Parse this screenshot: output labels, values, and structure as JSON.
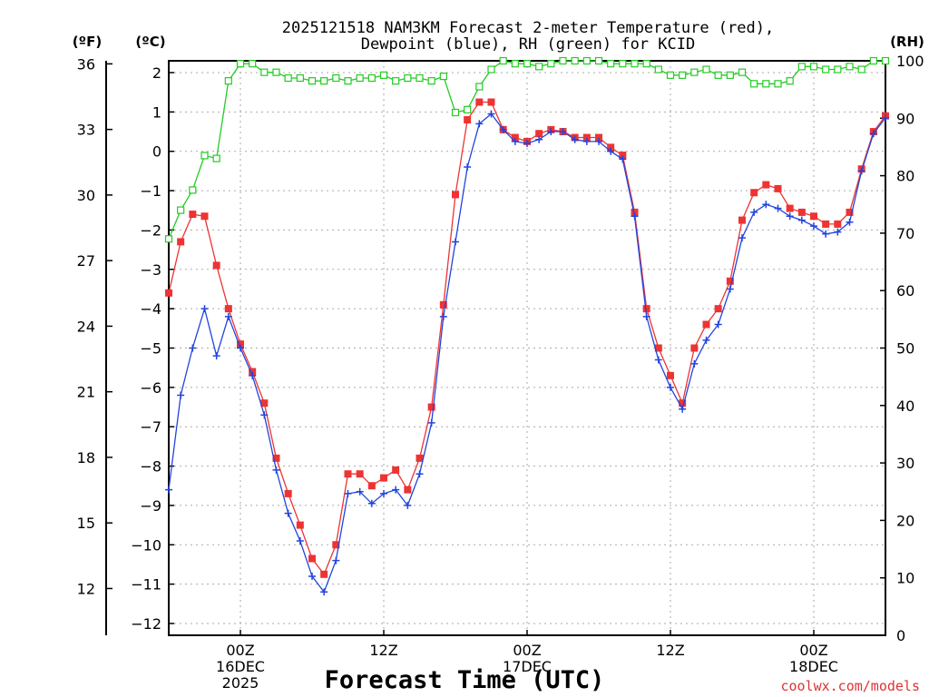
{
  "chart_data": {
    "type": "line",
    "title_line1": "2025121518 NAM3KM Forecast 2-meter Temperature (red),",
    "title_line2": "Dewpoint (blue), RH (green) for KCID",
    "unit_f": "(ºF)",
    "unit_c": "(ºC)",
    "unit_rh": "(RH)",
    "xlabel": "Forecast Time (UTC)",
    "watermark": "coolwx.com/models",
    "x_range_hours": [
      -5,
      55
    ],
    "y_celsius_range": [
      -12.3,
      2.3
    ],
    "y_rh_range": [
      0,
      100
    ],
    "y_fahrenheit_ticks": [
      12,
      15,
      18,
      21,
      24,
      27,
      30,
      33,
      36
    ],
    "y_celsius_ticks": [
      -12,
      -11,
      -10,
      -9,
      -8,
      -7,
      -6,
      -5,
      -4,
      -3,
      -2,
      -1,
      0,
      1,
      2
    ],
    "y_rh_ticks": [
      0,
      10,
      20,
      30,
      40,
      50,
      60,
      70,
      80,
      90,
      100
    ],
    "x_ticks": [
      {
        "hour": 1,
        "lines": [
          "00Z",
          "16DEC",
          "2025"
        ]
      },
      {
        "hour": 13,
        "lines": [
          "12Z"
        ]
      },
      {
        "hour": 25,
        "lines": [
          "00Z",
          "17DEC"
        ]
      },
      {
        "hour": 37,
        "lines": [
          "12Z"
        ]
      },
      {
        "hour": 49,
        "lines": [
          "00Z",
          "18DEC"
        ]
      }
    ],
    "grid": true,
    "series": [
      {
        "name": "Temperature",
        "color": "#ee3333",
        "marker": "square",
        "points": [
          [
            -5,
            -3.6
          ],
          [
            -4,
            -2.3
          ],
          [
            -3,
            -1.6
          ],
          [
            -2,
            -1.65
          ],
          [
            -1,
            -2.9
          ],
          [
            0,
            -4.0
          ],
          [
            1,
            -4.9
          ],
          [
            2,
            -5.6
          ],
          [
            3,
            -6.4
          ],
          [
            4,
            -7.8
          ],
          [
            5,
            -8.7
          ],
          [
            6,
            -9.5
          ],
          [
            7,
            -10.35
          ],
          [
            8,
            -10.75
          ],
          [
            9,
            -10.0
          ],
          [
            10,
            -8.2
          ],
          [
            11,
            -8.2
          ],
          [
            12,
            -8.5
          ],
          [
            13,
            -8.3
          ],
          [
            14,
            -8.1
          ],
          [
            15,
            -8.6
          ],
          [
            16,
            -7.8
          ],
          [
            17,
            -6.5
          ],
          [
            18,
            -3.9
          ],
          [
            19,
            -1.1
          ],
          [
            20,
            0.8
          ],
          [
            21,
            1.25
          ],
          [
            22,
            1.25
          ],
          [
            23,
            0.55
          ],
          [
            24,
            0.35
          ],
          [
            25,
            0.25
          ],
          [
            26,
            0.45
          ],
          [
            27,
            0.55
          ],
          [
            28,
            0.5
          ],
          [
            29,
            0.35
          ],
          [
            30,
            0.35
          ],
          [
            31,
            0.35
          ],
          [
            32,
            0.1
          ],
          [
            33,
            -0.1
          ],
          [
            34,
            -1.55
          ],
          [
            35,
            -4.0
          ],
          [
            36,
            -5.0
          ],
          [
            37,
            -5.7
          ],
          [
            38,
            -6.4
          ],
          [
            39,
            -5.0
          ],
          [
            40,
            -4.4
          ],
          [
            41,
            -4.0
          ],
          [
            42,
            -3.3
          ],
          [
            43,
            -1.75
          ],
          [
            44,
            -1.05
          ],
          [
            45,
            -0.85
          ],
          [
            46,
            -0.95
          ],
          [
            47,
            -1.45
          ],
          [
            48,
            -1.55
          ],
          [
            49,
            -1.65
          ],
          [
            50,
            -1.85
          ],
          [
            51,
            -1.85
          ],
          [
            52,
            -1.55
          ],
          [
            53,
            -0.45
          ],
          [
            54,
            0.5
          ],
          [
            55,
            0.9
          ]
        ]
      },
      {
        "name": "Dewpoint",
        "color": "#2244dd",
        "marker": "plus",
        "points": [
          [
            -5,
            -8.6
          ],
          [
            -4,
            -6.2
          ],
          [
            -3,
            -5.0
          ],
          [
            -2,
            -4.0
          ],
          [
            -1,
            -5.2
          ],
          [
            0,
            -4.2
          ],
          [
            1,
            -5.0
          ],
          [
            2,
            -5.7
          ],
          [
            3,
            -6.7
          ],
          [
            4,
            -8.1
          ],
          [
            5,
            -9.2
          ],
          [
            6,
            -9.9
          ],
          [
            7,
            -10.8
          ],
          [
            8,
            -11.2
          ],
          [
            9,
            -10.4
          ],
          [
            10,
            -8.7
          ],
          [
            11,
            -8.65
          ],
          [
            12,
            -8.95
          ],
          [
            13,
            -8.7
          ],
          [
            14,
            -8.6
          ],
          [
            15,
            -9.0
          ],
          [
            16,
            -8.2
          ],
          [
            17,
            -6.9
          ],
          [
            18,
            -4.2
          ],
          [
            19,
            -2.3
          ],
          [
            20,
            -0.4
          ],
          [
            21,
            0.7
          ],
          [
            22,
            0.95
          ],
          [
            23,
            0.55
          ],
          [
            24,
            0.25
          ],
          [
            25,
            0.2
          ],
          [
            26,
            0.3
          ],
          [
            27,
            0.5
          ],
          [
            28,
            0.5
          ],
          [
            29,
            0.3
          ],
          [
            30,
            0.25
          ],
          [
            31,
            0.25
          ],
          [
            32,
            0.0
          ],
          [
            33,
            -0.2
          ],
          [
            34,
            -1.65
          ],
          [
            35,
            -4.2
          ],
          [
            36,
            -5.3
          ],
          [
            37,
            -6.0
          ],
          [
            38,
            -6.55
          ],
          [
            39,
            -5.4
          ],
          [
            40,
            -4.8
          ],
          [
            41,
            -4.4
          ],
          [
            42,
            -3.5
          ],
          [
            43,
            -2.2
          ],
          [
            44,
            -1.55
          ],
          [
            45,
            -1.35
          ],
          [
            46,
            -1.45
          ],
          [
            47,
            -1.65
          ],
          [
            48,
            -1.75
          ],
          [
            49,
            -1.9
          ],
          [
            50,
            -2.1
          ],
          [
            51,
            -2.05
          ],
          [
            52,
            -1.8
          ],
          [
            53,
            -0.5
          ],
          [
            54,
            0.45
          ],
          [
            55,
            0.85
          ]
        ]
      },
      {
        "name": "Relative Humidity",
        "color": "#22cc22",
        "marker": "open-square",
        "axis": "rh",
        "points": [
          [
            -5,
            69
          ],
          [
            -4,
            74
          ],
          [
            -3,
            77.5
          ],
          [
            -2,
            83.5
          ],
          [
            -1,
            83
          ],
          [
            0,
            96.5
          ],
          [
            1,
            99.5
          ],
          [
            2,
            99.5
          ],
          [
            3,
            98
          ],
          [
            4,
            98
          ],
          [
            5,
            97
          ],
          [
            6,
            97
          ],
          [
            7,
            96.5
          ],
          [
            8,
            96.5
          ],
          [
            9,
            97
          ],
          [
            10,
            96.5
          ],
          [
            11,
            97
          ],
          [
            12,
            97
          ],
          [
            13,
            97.5
          ],
          [
            14,
            96.5
          ],
          [
            15,
            97
          ],
          [
            16,
            97
          ],
          [
            17,
            96.5
          ],
          [
            18,
            97.3
          ],
          [
            19,
            91
          ],
          [
            20,
            91.5
          ],
          [
            21,
            95.5
          ],
          [
            22,
            98.5
          ],
          [
            23,
            100
          ],
          [
            24,
            99.5
          ],
          [
            25,
            99.5
          ],
          [
            26,
            99
          ],
          [
            27,
            99.5
          ],
          [
            28,
            100
          ],
          [
            29,
            100
          ],
          [
            30,
            100
          ],
          [
            31,
            100
          ],
          [
            32,
            99.5
          ],
          [
            33,
            99.5
          ],
          [
            34,
            99.5
          ],
          [
            35,
            99.5
          ],
          [
            36,
            98.5
          ],
          [
            37,
            97.5
          ],
          [
            38,
            97.5
          ],
          [
            39,
            98
          ],
          [
            40,
            98.5
          ],
          [
            41,
            97.5
          ],
          [
            42,
            97.5
          ],
          [
            43,
            98
          ],
          [
            44,
            96
          ],
          [
            45,
            96
          ],
          [
            46,
            96
          ],
          [
            47,
            96.5
          ],
          [
            48,
            99
          ],
          [
            49,
            99
          ],
          [
            50,
            98.5
          ],
          [
            51,
            98.5
          ],
          [
            52,
            99
          ],
          [
            53,
            98.5
          ],
          [
            54,
            100
          ],
          [
            55,
            100
          ]
        ]
      }
    ]
  }
}
